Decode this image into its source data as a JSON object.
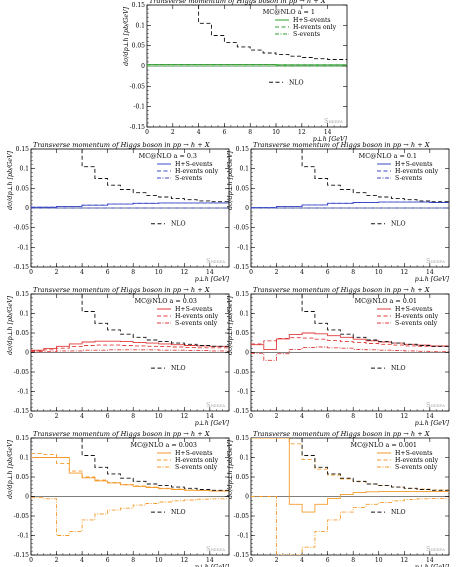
{
  "figure": {
    "panels": [
      {
        "label": "MC@NLO a = 1",
        "color": "#2ca02c"
      },
      {
        "label": "MC@NLO a = 0.3",
        "color": "#3a49c8"
      },
      {
        "label": "MC@NLO a = 0.1",
        "color": "#3a49c8"
      },
      {
        "label": "MC@NLO a = 0.03",
        "color": "#e03a3a"
      },
      {
        "label": "MC@NLO a = 0.01",
        "color": "#e03a3a"
      },
      {
        "label": "MC@NLO a = 0.003",
        "color": "#f39a2b"
      },
      {
        "label": "MC@NLO a = 0.001",
        "color": "#f39a2b"
      }
    ]
  },
  "chart_data": [
    {
      "type": "line",
      "title": "Transverse momentum of Higgs boson in pp → h + X",
      "xlabel": "p⊥h [GeV]",
      "ylabel": "dσ/dp⊥h [pb/GeV]",
      "xlim": [
        0,
        15.5
      ],
      "ylim": [
        -0.15,
        0.15
      ],
      "xticks": [
        0,
        2,
        4,
        6,
        8,
        10,
        12,
        14
      ],
      "yticks": [
        -0.15,
        -0.1,
        -0.05,
        0,
        0.05,
        0.1,
        0.15
      ],
      "legend": "top-right",
      "watermark": "Sherpa",
      "series": [
        {
          "name": "H+S-events",
          "style": "solid",
          "x": [
            0,
            2,
            4,
            6,
            8,
            10,
            12,
            14,
            15.5
          ],
          "values": [
            0.004,
            0.004,
            0.004,
            0.004,
            0.004,
            0.003,
            0.003,
            0.003,
            0.003
          ]
        },
        {
          "name": "H-events only",
          "style": "dash",
          "x": [
            0,
            2,
            4,
            6,
            8,
            10,
            12,
            14,
            15.5
          ],
          "values": [
            0.004,
            0.004,
            0.004,
            0.004,
            0.004,
            0.003,
            0.003,
            0.003,
            0.003
          ]
        },
        {
          "name": "S-events",
          "style": "dashdot",
          "x": [
            0,
            15.5
          ],
          "values": [
            0,
            0
          ]
        },
        {
          "name": "NLO",
          "style": "dash",
          "x": [
            3,
            4,
            5,
            6,
            7,
            8,
            9,
            10,
            11,
            12,
            13,
            14,
            15.5
          ],
          "values": [
            0.15,
            0.105,
            0.075,
            0.058,
            0.047,
            0.039,
            0.032,
            0.028,
            0.024,
            0.021,
            0.018,
            0.016,
            0.014
          ]
        }
      ]
    },
    {
      "type": "line",
      "title": "Transverse momentum of Higgs boson in pp → h + X",
      "xlabel": "p⊥h [GeV]",
      "ylabel": "dσ/dp⊥h [pb/GeV]",
      "xlim": [
        0,
        15.5
      ],
      "ylim": [
        -0.15,
        0.15
      ],
      "legend": "top-right",
      "watermark": "Sherpa",
      "series": [
        {
          "name": "H+S-events",
          "style": "solid",
          "x": [
            0,
            2,
            4,
            6,
            8,
            10,
            12,
            14,
            15.5
          ],
          "values": [
            0.002,
            0.004,
            0.007,
            0.01,
            0.012,
            0.013,
            0.013,
            0.013,
            0.013
          ]
        },
        {
          "name": "H-events only",
          "style": "dash",
          "x": [
            0,
            2,
            4,
            6,
            8,
            10,
            12,
            14,
            15.5
          ],
          "values": [
            0.002,
            0.004,
            0.007,
            0.01,
            0.012,
            0.013,
            0.013,
            0.013,
            0.013
          ]
        },
        {
          "name": "S-events",
          "style": "dashdot",
          "x": [
            0,
            15.5
          ],
          "values": [
            0,
            0
          ]
        },
        {
          "name": "NLO",
          "style": "dash",
          "x": [
            3,
            4,
            5,
            6,
            7,
            8,
            9,
            10,
            11,
            12,
            13,
            14,
            15.5
          ],
          "values": [
            0.15,
            0.105,
            0.075,
            0.058,
            0.047,
            0.039,
            0.032,
            0.028,
            0.024,
            0.021,
            0.018,
            0.016,
            0.014
          ]
        }
      ]
    },
    {
      "type": "line",
      "title": "Transverse momentum of Higgs boson in pp → h + X",
      "xlabel": "p⊥h [GeV]",
      "ylabel": "dσ/dp⊥h [pb/GeV]",
      "xlim": [
        0,
        15.5
      ],
      "ylim": [
        -0.15,
        0.15
      ],
      "legend": "top-right",
      "watermark": "Sherpa",
      "series": [
        {
          "name": "H+S-events",
          "style": "solid",
          "x": [
            0,
            2,
            4,
            6,
            8,
            10,
            12,
            14,
            15.5
          ],
          "values": [
            0.001,
            0.004,
            0.008,
            0.012,
            0.014,
            0.015,
            0.015,
            0.014,
            0.014
          ]
        },
        {
          "name": "H-events only",
          "style": "dash",
          "x": [
            0,
            2,
            4,
            6,
            8,
            10,
            12,
            14,
            15.5
          ],
          "values": [
            0.001,
            0.004,
            0.008,
            0.012,
            0.014,
            0.015,
            0.015,
            0.014,
            0.014
          ]
        },
        {
          "name": "S-events",
          "style": "dashdot",
          "x": [
            0,
            15.5
          ],
          "values": [
            0,
            0
          ]
        },
        {
          "name": "NLO",
          "style": "dash",
          "x": [
            3,
            4,
            5,
            6,
            7,
            8,
            9,
            10,
            11,
            12,
            13,
            14,
            15.5
          ],
          "values": [
            0.15,
            0.105,
            0.075,
            0.058,
            0.047,
            0.039,
            0.032,
            0.028,
            0.024,
            0.021,
            0.018,
            0.016,
            0.014
          ]
        }
      ]
    },
    {
      "type": "line",
      "title": "Transverse momentum of Higgs boson in pp → h + X",
      "xlabel": "p⊥h [GeV]",
      "ylabel": "dσ/dp⊥h [pb/GeV]",
      "xlim": [
        0,
        15.5
      ],
      "ylim": [
        -0.15,
        0.15
      ],
      "legend": "top-right",
      "watermark": "Sherpa",
      "series": [
        {
          "name": "H+S-events",
          "style": "solid",
          "x": [
            0,
            1,
            2,
            3,
            4,
            5,
            6,
            7,
            8,
            9,
            10,
            11,
            12,
            13,
            14,
            15.5
          ],
          "values": [
            0.006,
            0.01,
            0.016,
            0.022,
            0.027,
            0.029,
            0.029,
            0.028,
            0.026,
            0.024,
            0.022,
            0.02,
            0.018,
            0.017,
            0.016,
            0.015
          ]
        },
        {
          "name": "H-events only",
          "style": "dash",
          "x": [
            0,
            1,
            2,
            3,
            4,
            5,
            6,
            7,
            8,
            9,
            10,
            11,
            12,
            13,
            14,
            15.5
          ],
          "values": [
            0.004,
            0.007,
            0.011,
            0.015,
            0.018,
            0.019,
            0.019,
            0.018,
            0.017,
            0.016,
            0.015,
            0.014,
            0.013,
            0.012,
            0.012,
            0.012
          ]
        },
        {
          "name": "S-events only",
          "style": "dashdot",
          "x": [
            0,
            2,
            4,
            6,
            8,
            10,
            12,
            14,
            15.5
          ],
          "values": [
            0.002,
            0.004,
            0.006,
            0.007,
            0.007,
            0.006,
            0.005,
            0.004,
            0.003
          ]
        },
        {
          "name": "NLO",
          "style": "dash",
          "x": [
            3,
            4,
            5,
            6,
            7,
            8,
            9,
            10,
            11,
            12,
            13,
            14,
            15.5
          ],
          "values": [
            0.15,
            0.105,
            0.075,
            0.058,
            0.047,
            0.039,
            0.032,
            0.028,
            0.024,
            0.021,
            0.018,
            0.016,
            0.014
          ]
        }
      ]
    },
    {
      "type": "line",
      "title": "Transverse momentum of Higgs boson in pp → h + X",
      "xlabel": "p⊥h [GeV]",
      "ylabel": "dσ/dp⊥h [pb/GeV]",
      "xlim": [
        0,
        15.5
      ],
      "ylim": [
        -0.15,
        0.15
      ],
      "legend": "top-right",
      "watermark": "Sherpa",
      "series": [
        {
          "name": "H+S-events",
          "style": "solid",
          "x": [
            0,
            1,
            2,
            3,
            4,
            5,
            6,
            7,
            8,
            9,
            10,
            11,
            12,
            13,
            14,
            15.5
          ],
          "values": [
            0.02,
            0.008,
            0.035,
            0.046,
            0.05,
            0.048,
            0.043,
            0.039,
            0.034,
            0.03,
            0.027,
            0.024,
            0.021,
            0.019,
            0.017,
            0.016
          ]
        },
        {
          "name": "H-events only",
          "style": "dash",
          "x": [
            0,
            1,
            2,
            3,
            4,
            5,
            6,
            7,
            8,
            9,
            10,
            11,
            12,
            13,
            14,
            15.5
          ],
          "values": [
            0.022,
            0.03,
            0.036,
            0.038,
            0.037,
            0.034,
            0.031,
            0.028,
            0.026,
            0.023,
            0.021,
            0.019,
            0.017,
            0.016,
            0.015,
            0.014
          ]
        },
        {
          "name": "S-events only",
          "style": "dashdot",
          "x": [
            0,
            1,
            2,
            3,
            4,
            5,
            6,
            7,
            8,
            9,
            10,
            11,
            12,
            13,
            14,
            15.5
          ],
          "values": [
            -0.002,
            -0.02,
            -0.003,
            0.008,
            0.013,
            0.014,
            0.012,
            0.011,
            0.008,
            0.007,
            0.006,
            0.005,
            0.004,
            0.003,
            0.002,
            0.002
          ]
        },
        {
          "name": "NLO",
          "style": "dash",
          "x": [
            3,
            4,
            5,
            6,
            7,
            8,
            9,
            10,
            11,
            12,
            13,
            14,
            15.5
          ],
          "values": [
            0.15,
            0.105,
            0.075,
            0.058,
            0.047,
            0.039,
            0.032,
            0.028,
            0.024,
            0.021,
            0.018,
            0.016,
            0.014
          ]
        }
      ]
    },
    {
      "type": "line",
      "title": "Transverse momentum of Higgs boson in pp → h + X",
      "xlabel": "p⊥h [GeV]",
      "ylabel": "dσ/dp⊥h [pb/GeV]",
      "xlim": [
        0,
        15.5
      ],
      "ylim": [
        -0.15,
        0.15
      ],
      "legend": "top-right",
      "watermark": "Sherpa",
      "series": [
        {
          "name": "H+S-events",
          "style": "solid",
          "x": [
            0,
            1,
            2,
            3,
            4,
            5,
            6,
            7,
            8,
            9,
            10,
            11,
            12,
            13,
            14,
            15.5
          ],
          "values": [
            0.1,
            0.1,
            0.1,
            0.06,
            0.048,
            0.04,
            0.035,
            0.03,
            0.026,
            0.023,
            0.02,
            0.018,
            0.016,
            0.015,
            0.014,
            0.013
          ]
        },
        {
          "name": "H-events only",
          "style": "dash",
          "x": [
            0,
            1,
            2,
            3,
            4,
            5,
            6,
            7,
            8,
            9,
            10,
            11,
            12,
            13,
            14,
            15.5
          ],
          "values": [
            0.11,
            0.108,
            0.085,
            0.065,
            0.05,
            0.042,
            0.036,
            0.031,
            0.027,
            0.024,
            0.021,
            0.019,
            0.017,
            0.015,
            0.014,
            0.013
          ]
        },
        {
          "name": "S-events only",
          "style": "dashdot",
          "x": [
            0,
            1,
            2,
            3,
            4,
            5,
            6,
            7,
            8,
            9,
            10,
            11,
            12,
            13,
            14,
            15.5
          ],
          "values": [
            -0.003,
            -0.006,
            -0.1,
            -0.09,
            -0.06,
            -0.045,
            -0.035,
            -0.03,
            -0.022,
            -0.018,
            -0.014,
            -0.011,
            -0.009,
            -0.007,
            -0.006,
            -0.005
          ]
        },
        {
          "name": "NLO",
          "style": "dash",
          "x": [
            3,
            4,
            5,
            6,
            7,
            8,
            9,
            10,
            11,
            12,
            13,
            14,
            15.5
          ],
          "values": [
            0.15,
            0.105,
            0.075,
            0.058,
            0.047,
            0.039,
            0.032,
            0.028,
            0.024,
            0.021,
            0.018,
            0.016,
            0.014
          ]
        }
      ]
    },
    {
      "type": "line",
      "title": "Transverse momentum of Higgs boson in pp → h + X",
      "xlabel": "p⊥h [GeV]",
      "ylabel": "dσ/dp⊥h [pb/GeV]",
      "xlim": [
        0,
        15.5
      ],
      "ylim": [
        -0.15,
        0.15
      ],
      "legend": "top-right",
      "watermark": "Sherpa",
      "series": [
        {
          "name": "H+S-events",
          "style": "solid",
          "x": [
            0,
            1,
            2,
            3,
            4,
            5,
            6,
            7,
            8,
            9,
            10,
            11,
            12,
            13,
            14,
            15.5
          ],
          "values": [
            0.15,
            0.15,
            0.15,
            -0.02,
            -0.04,
            -0.02,
            -0.005,
            0.005,
            0.01,
            0.012,
            0.013,
            0.013,
            0.013,
            0.013,
            0.013,
            0.012
          ]
        },
        {
          "name": "H-events only",
          "style": "dash",
          "x": [
            0,
            1,
            2,
            3,
            4,
            5,
            6,
            7,
            8,
            9,
            10,
            11,
            12,
            13,
            14,
            15.5
          ],
          "values": [
            0.15,
            0.15,
            0.15,
            0.135,
            0.095,
            0.07,
            0.055,
            0.045,
            0.038,
            0.032,
            0.028,
            0.024,
            0.021,
            0.019,
            0.017,
            0.015
          ]
        },
        {
          "name": "S-events only",
          "style": "dashdot",
          "x": [
            0,
            1,
            2,
            3,
            4,
            5,
            6,
            7,
            8,
            9,
            10,
            11,
            12,
            13,
            14,
            15.5
          ],
          "values": [
            0,
            0,
            -0.15,
            -0.15,
            -0.13,
            -0.09,
            -0.06,
            -0.04,
            -0.028,
            -0.02,
            -0.015,
            -0.011,
            -0.008,
            -0.006,
            -0.005,
            -0.004
          ]
        },
        {
          "name": "NLO",
          "style": "dash",
          "x": [
            3,
            4,
            5,
            6,
            7,
            8,
            9,
            10,
            11,
            12,
            13,
            14,
            15.5
          ],
          "values": [
            0.15,
            0.105,
            0.075,
            0.058,
            0.047,
            0.039,
            0.032,
            0.028,
            0.024,
            0.021,
            0.018,
            0.016,
            0.014
          ]
        }
      ]
    }
  ]
}
